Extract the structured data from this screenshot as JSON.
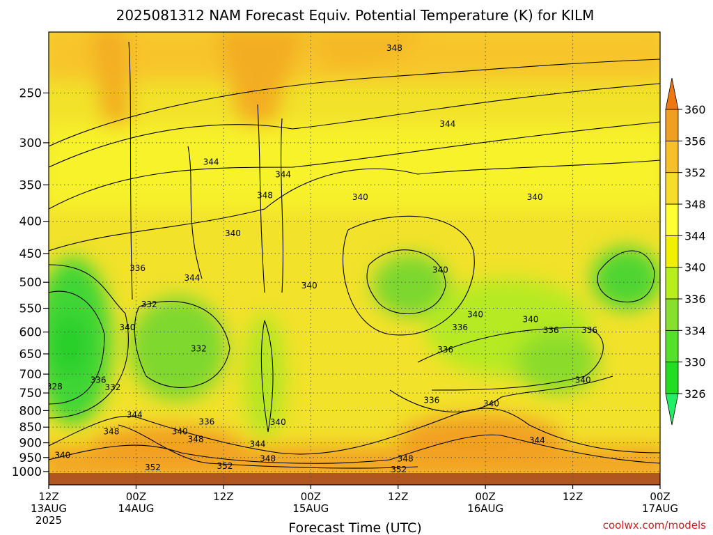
{
  "title": "2025081312 NAM Forecast Equiv. Potential Temperature (K) for KILM",
  "credit": "coolwx.com/models",
  "chart_data": {
    "type": "heatmap",
    "title": "2025081312 NAM Forecast Equiv. Potential Temperature (K) for KILM",
    "xlabel": "Forecast Time (UTC)",
    "ylabel": "",
    "x_range_hours": [
      0,
      84
    ],
    "y_range_hpa": [
      200,
      1050
    ],
    "y_scale": "log-pressure",
    "y_ticks": [
      250,
      300,
      350,
      400,
      450,
      500,
      550,
      600,
      650,
      700,
      750,
      800,
      850,
      900,
      950,
      1000
    ],
    "x_ticks": [
      {
        "hour": 0,
        "line1": "12Z",
        "line2": "13AUG",
        "line3": "2025"
      },
      {
        "hour": 12,
        "line1": "00Z",
        "line2": "14AUG",
        "line3": ""
      },
      {
        "hour": 24,
        "line1": "12Z",
        "line2": "",
        "line3": ""
      },
      {
        "hour": 36,
        "line1": "00Z",
        "line2": "15AUG",
        "line3": ""
      },
      {
        "hour": 48,
        "line1": "12Z",
        "line2": "",
        "line3": ""
      },
      {
        "hour": 60,
        "line1": "00Z",
        "line2": "16AUG",
        "line3": ""
      },
      {
        "hour": 72,
        "line1": "12Z",
        "line2": "",
        "line3": ""
      },
      {
        "hour": 84,
        "line1": "00Z",
        "line2": "17AUG",
        "line3": ""
      }
    ],
    "grid": true,
    "colorbar": {
      "position": "right",
      "levels": [
        {
          "value": 326,
          "color": "#22dd22"
        },
        {
          "value": 330,
          "color": "#55e02a"
        },
        {
          "value": 334,
          "color": "#88e02e"
        },
        {
          "value": 336,
          "color": "#b8ee1c"
        },
        {
          "value": 340,
          "color": "#f0f000"
        },
        {
          "value": 344,
          "color": "#ffff33"
        },
        {
          "value": 348,
          "color": "#f8dc2a"
        },
        {
          "value": 352,
          "color": "#f8c028"
        },
        {
          "value": 356,
          "color": "#f0a020"
        },
        {
          "value": 360,
          "color": "#f08a18"
        }
      ],
      "top_cap_color": "#ee7711",
      "bottom_cap_color": "#22ee66"
    },
    "contour_labels": [
      {
        "text": "348",
        "hour": 47.5,
        "p": 212
      },
      {
        "text": "344",
        "hour": 54.8,
        "p": 280
      },
      {
        "text": "344",
        "hour": 22.3,
        "p": 322
      },
      {
        "text": "344",
        "hour": 32.2,
        "p": 337
      },
      {
        "text": "340",
        "hour": 42.8,
        "p": 366
      },
      {
        "text": "348",
        "hour": 29.7,
        "p": 364
      },
      {
        "text": "340",
        "hour": 66.8,
        "p": 366
      },
      {
        "text": "340",
        "hour": 25.3,
        "p": 418
      },
      {
        "text": "336",
        "hour": 12.2,
        "p": 475
      },
      {
        "text": "340",
        "hour": 53.8,
        "p": 478
      },
      {
        "text": "344",
        "hour": 19.7,
        "p": 492
      },
      {
        "text": "340",
        "hour": 35.8,
        "p": 506
      },
      {
        "text": "332",
        "hour": 13.8,
        "p": 542
      },
      {
        "text": "340",
        "hour": 58.6,
        "p": 563
      },
      {
        "text": "340",
        "hour": 66.2,
        "p": 573
      },
      {
        "text": "340",
        "hour": 10.8,
        "p": 590
      },
      {
        "text": "336",
        "hour": 56.5,
        "p": 590
      },
      {
        "text": "336",
        "hour": 69.0,
        "p": 596
      },
      {
        "text": "336",
        "hour": 74.3,
        "p": 596
      },
      {
        "text": "332",
        "hour": 20.6,
        "p": 638
      },
      {
        "text": "336",
        "hour": 54.5,
        "p": 640
      },
      {
        "text": "336",
        "hour": 6.8,
        "p": 715
      },
      {
        "text": "340",
        "hour": 73.4,
        "p": 715
      },
      {
        "text": "328",
        "hour": 0.8,
        "p": 733
      },
      {
        "text": "332",
        "hour": 8.8,
        "p": 735
      },
      {
        "text": "336",
        "hour": 52.6,
        "p": 770
      },
      {
        "text": "340",
        "hour": 60.8,
        "p": 780
      },
      {
        "text": "344",
        "hour": 11.8,
        "p": 813
      },
      {
        "text": "336",
        "hour": 21.7,
        "p": 834
      },
      {
        "text": "340",
        "hour": 31.5,
        "p": 835
      },
      {
        "text": "348",
        "hour": 8.6,
        "p": 864
      },
      {
        "text": "340",
        "hour": 18.0,
        "p": 864
      },
      {
        "text": "348",
        "hour": 20.2,
        "p": 888
      },
      {
        "text": "344",
        "hour": 28.7,
        "p": 905
      },
      {
        "text": "344",
        "hour": 67.1,
        "p": 892
      },
      {
        "text": "340",
        "hour": 1.9,
        "p": 942
      },
      {
        "text": "348",
        "hour": 30.1,
        "p": 954
      },
      {
        "text": "348",
        "hour": 49.0,
        "p": 954
      },
      {
        "text": "352",
        "hour": 14.3,
        "p": 985
      },
      {
        "text": "352",
        "hour": 24.2,
        "p": 980
      },
      {
        "text": "352",
        "hour": 48.1,
        "p": 993
      }
    ]
  }
}
